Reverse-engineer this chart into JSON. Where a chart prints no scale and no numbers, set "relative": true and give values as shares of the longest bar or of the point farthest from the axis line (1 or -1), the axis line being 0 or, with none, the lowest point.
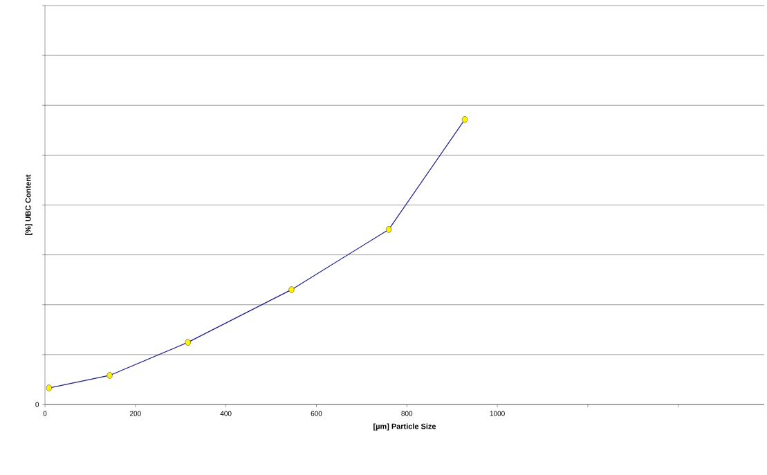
{
  "chart_data": {
    "type": "line",
    "xlabel": "[µm]  Particle Size",
    "ylabel": "[%] UBC Content",
    "relative": true,
    "x": [
      9,
      143,
      316,
      545,
      760,
      928
    ],
    "series": [
      {
        "color": "#1c1c8e",
        "values": [
          0.058,
          0.102,
          0.218,
          0.403,
          0.614,
          1
        ]
      }
    ],
    "xlim": [
      0,
      1590
    ],
    "xticks": [
      0,
      200,
      400,
      600,
      800,
      1000,
      {
        "value": 1200,
        "label": null
      },
      {
        "value": 1400,
        "label": null
      }
    ],
    "annotations": [
      "0"
    ],
    "grid": "y",
    "marker": "circle",
    "line_style": "solid"
  }
}
